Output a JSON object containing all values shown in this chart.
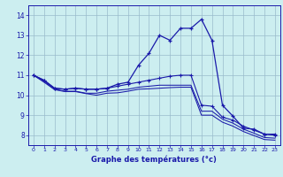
{
  "xlabel": "Graphe des températures (°c)",
  "background_color": "#cceef0",
  "grid_color": "#99bbcc",
  "line_color": "#1a1aaa",
  "xlim": [
    -0.5,
    23.5
  ],
  "ylim": [
    7.5,
    14.5
  ],
  "xticks": [
    0,
    1,
    2,
    3,
    4,
    5,
    6,
    7,
    8,
    9,
    10,
    11,
    12,
    13,
    14,
    15,
    16,
    17,
    18,
    19,
    20,
    21,
    22,
    23
  ],
  "yticks": [
    8,
    9,
    10,
    11,
    12,
    13,
    14
  ],
  "curve1_x": [
    0,
    1,
    2,
    3,
    4,
    5,
    6,
    7,
    8,
    9,
    10,
    11,
    12,
    13,
    14,
    15,
    16,
    17,
    18,
    19,
    20,
    21,
    22,
    23
  ],
  "curve1_y": [
    11.0,
    10.75,
    10.35,
    10.3,
    10.35,
    10.3,
    10.3,
    10.35,
    10.55,
    10.65,
    11.5,
    12.1,
    13.0,
    12.75,
    13.35,
    13.35,
    13.8,
    12.75,
    9.5,
    8.95,
    8.35,
    8.3,
    8.05,
    8.05
  ],
  "curve2_x": [
    0,
    1,
    2,
    3,
    4,
    5,
    6,
    7,
    8,
    9,
    10,
    11,
    12,
    13,
    14,
    15,
    16,
    17,
    18,
    19,
    20,
    21,
    22,
    23
  ],
  "curve2_y": [
    11.0,
    10.75,
    10.35,
    10.3,
    10.35,
    10.3,
    10.3,
    10.35,
    10.45,
    10.55,
    10.65,
    10.75,
    10.85,
    10.95,
    11.0,
    11.0,
    9.5,
    9.45,
    8.9,
    8.75,
    8.45,
    8.25,
    8.05,
    8.0
  ],
  "curve3_x": [
    0,
    1,
    2,
    3,
    4,
    5,
    6,
    7,
    8,
    9,
    10,
    11,
    12,
    13,
    14,
    15,
    16,
    17,
    18,
    19,
    20,
    21,
    22,
    23
  ],
  "curve3_y": [
    11.0,
    10.7,
    10.3,
    10.2,
    10.2,
    10.1,
    10.1,
    10.2,
    10.25,
    10.3,
    10.4,
    10.45,
    10.5,
    10.5,
    10.5,
    10.5,
    9.2,
    9.2,
    8.8,
    8.6,
    8.3,
    8.1,
    7.88,
    7.85
  ],
  "curve4_x": [
    0,
    1,
    2,
    3,
    4,
    5,
    6,
    7,
    8,
    9,
    10,
    11,
    12,
    13,
    14,
    15,
    16,
    17,
    18,
    19,
    20,
    21,
    22,
    23
  ],
  "curve4_y": [
    11.0,
    10.65,
    10.28,
    10.18,
    10.18,
    10.08,
    10.0,
    10.1,
    10.12,
    10.2,
    10.3,
    10.32,
    10.35,
    10.38,
    10.4,
    10.4,
    9.0,
    9.0,
    8.65,
    8.45,
    8.18,
    7.98,
    7.78,
    7.75
  ]
}
